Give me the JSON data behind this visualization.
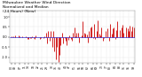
{
  "title": "Milwaukee Weather Wind Direction",
  "subtitle1": "Normalized and Median",
  "subtitle2": "(24 Hours) (New)",
  "bg_color": "#ffffff",
  "plot_bg": "#ffffff",
  "ylim": [
    -1.3,
    1.3
  ],
  "y_ticks": [
    -1.0,
    -0.5,
    0.0,
    0.5,
    1.0
  ],
  "bar_color": "#cc0000",
  "line_color": "#0000cc",
  "legend_blue_label": "Normalized",
  "legend_red_label": "Median",
  "title_fontsize": 3.2,
  "tick_fontsize": 2.5,
  "n_points": 100,
  "seed": 42,
  "fig_width": 1.6,
  "fig_height": 0.87,
  "dpi": 100
}
